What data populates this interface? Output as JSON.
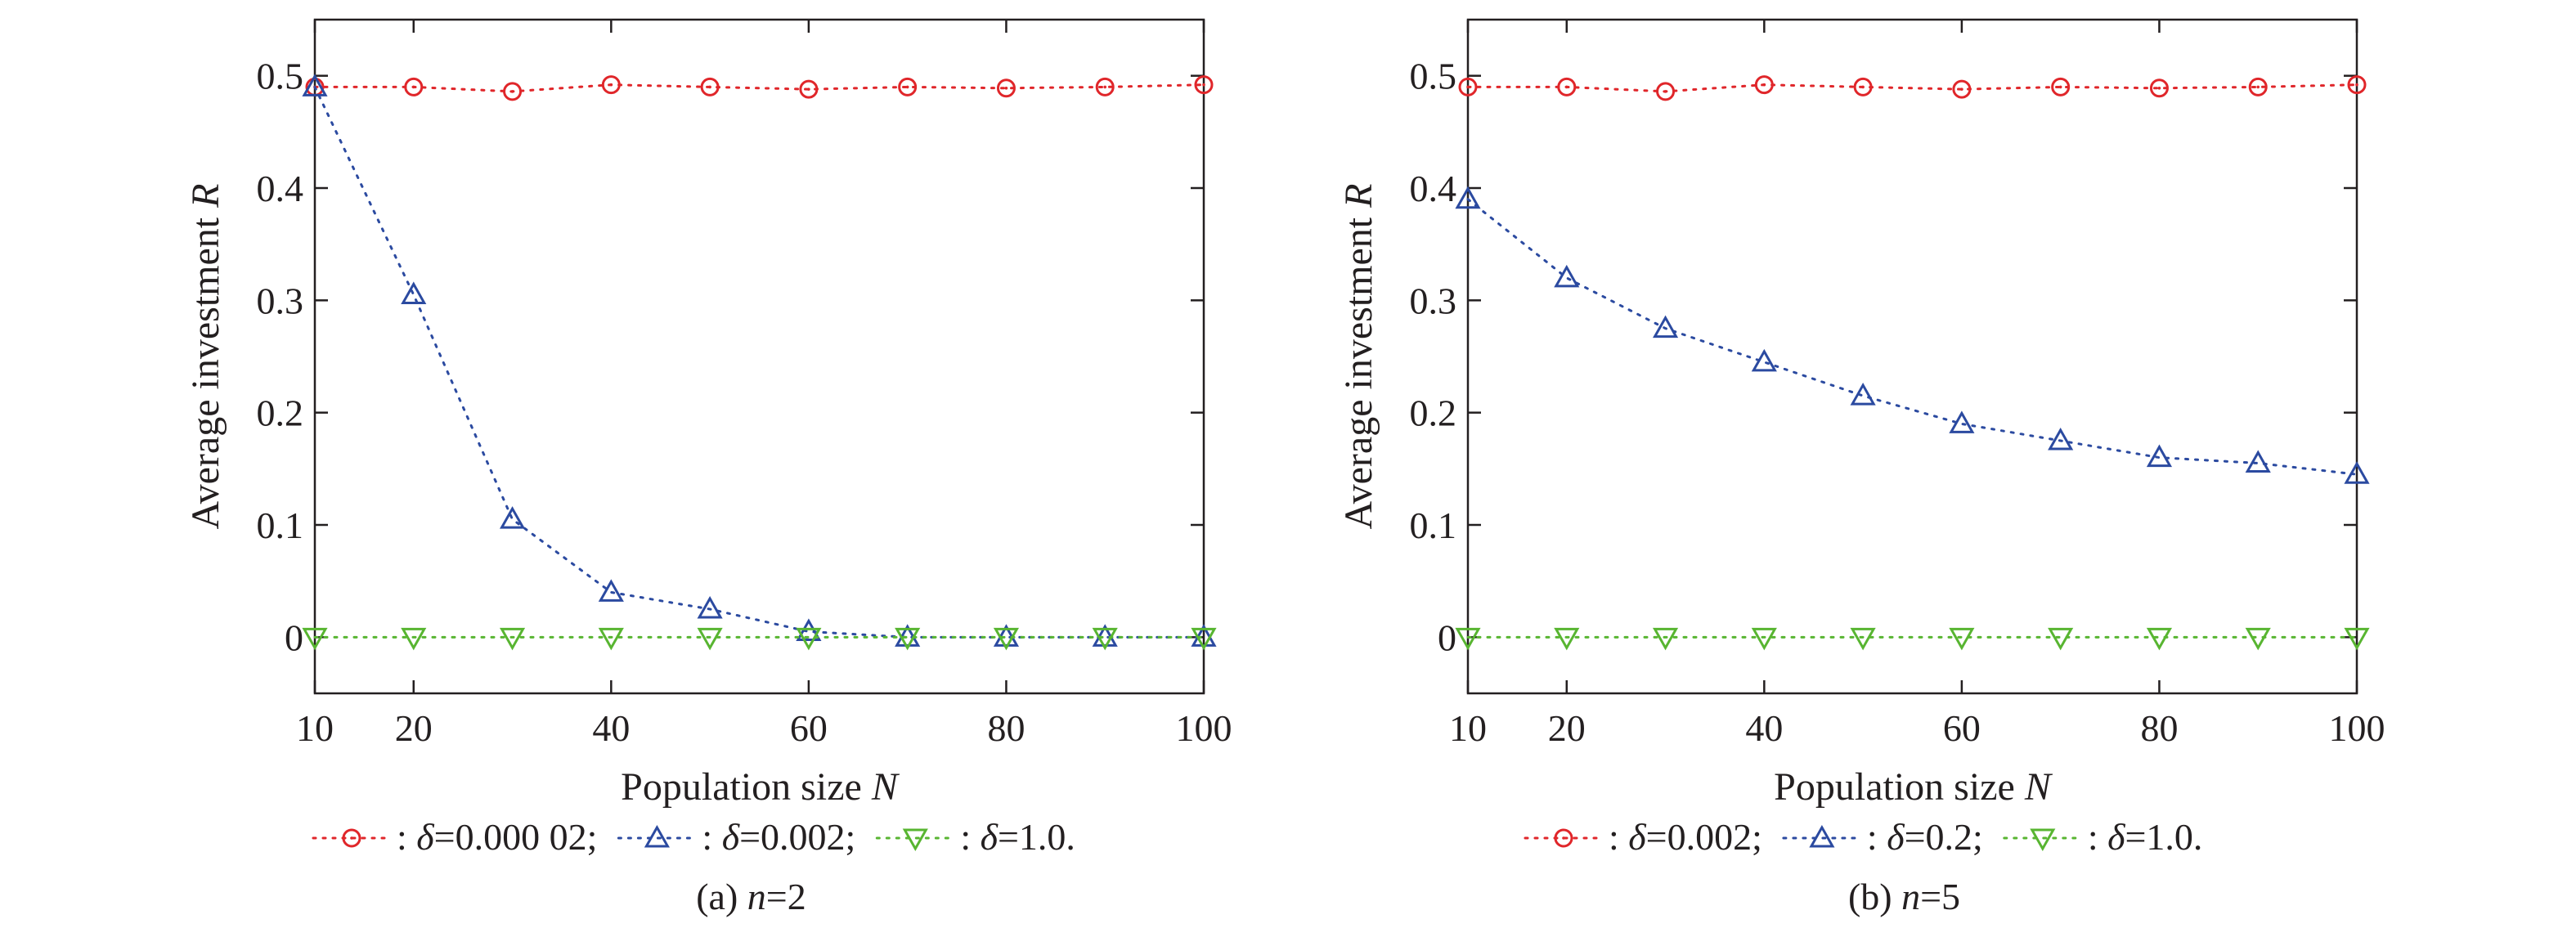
{
  "chart_data": [
    {
      "type": "line",
      "xlabel": {
        "text": "Population size ",
        "italic": "N"
      },
      "ylabel": {
        "text": "Average investment ",
        "italic": "R"
      },
      "xlim": [
        10,
        100
      ],
      "ylim": [
        -0.05,
        0.55
      ],
      "xticks": [
        "10",
        "20",
        "40",
        "60",
        "80",
        "100"
      ],
      "yticks": [
        "0",
        "0.1",
        "0.2",
        "0.3",
        "0.4",
        "0.5"
      ],
      "x": [
        10,
        20,
        30,
        40,
        50,
        60,
        70,
        80,
        90,
        100
      ],
      "series": [
        {
          "legend_text": "=0.000 02;",
          "marker": "circle",
          "color": "#e0262a",
          "values": [
            0.49,
            0.49,
            0.486,
            0.492,
            0.49,
            0.488,
            0.49,
            0.489,
            0.49,
            0.492
          ]
        },
        {
          "legend_text": "=0.002;",
          "marker": "triangle-up",
          "color": "#2b4aa0",
          "values": [
            0.49,
            0.305,
            0.105,
            0.04,
            0.025,
            0.005,
            0.0,
            0.0,
            0.0,
            0.0
          ]
        },
        {
          "legend_text": "=1.0.",
          "marker": "triangle-down",
          "color": "#58b531",
          "values": [
            0,
            0,
            0,
            0,
            0,
            0,
            0,
            0,
            0,
            0
          ]
        }
      ],
      "caption": {
        "prefix": "(a) ",
        "italic": "n",
        "suffix": "=2"
      },
      "grid": false
    },
    {
      "type": "line",
      "xlabel": {
        "text": "Population size ",
        "italic": "N"
      },
      "ylabel": {
        "text": "Average investment ",
        "italic": "R"
      },
      "xlim": [
        10,
        100
      ],
      "ylim": [
        -0.05,
        0.55
      ],
      "xticks": [
        "10",
        "20",
        "40",
        "60",
        "80",
        "100"
      ],
      "yticks": [
        "0",
        "0.1",
        "0.2",
        "0.3",
        "0.4",
        "0.5"
      ],
      "x": [
        10,
        20,
        30,
        40,
        50,
        60,
        70,
        80,
        90,
        100
      ],
      "series": [
        {
          "legend_text": "=0.002;",
          "marker": "circle",
          "color": "#e0262a",
          "values": [
            0.49,
            0.49,
            0.486,
            0.492,
            0.49,
            0.488,
            0.49,
            0.489,
            0.49,
            0.492
          ]
        },
        {
          "legend_text": "=0.2;",
          "marker": "triangle-up",
          "color": "#2b4aa0",
          "values": [
            0.39,
            0.32,
            0.275,
            0.245,
            0.215,
            0.19,
            0.175,
            0.16,
            0.155,
            0.145
          ]
        },
        {
          "legend_text": "=1.0.",
          "marker": "triangle-down",
          "color": "#58b531",
          "values": [
            0,
            0,
            0,
            0,
            0,
            0,
            0,
            0,
            0,
            0
          ]
        }
      ],
      "caption": {
        "prefix": "(b) ",
        "italic": "n",
        "suffix": "=5"
      },
      "grid": false
    }
  ],
  "legend_symbols": {
    "separator": ": ",
    "greek": "δ"
  }
}
